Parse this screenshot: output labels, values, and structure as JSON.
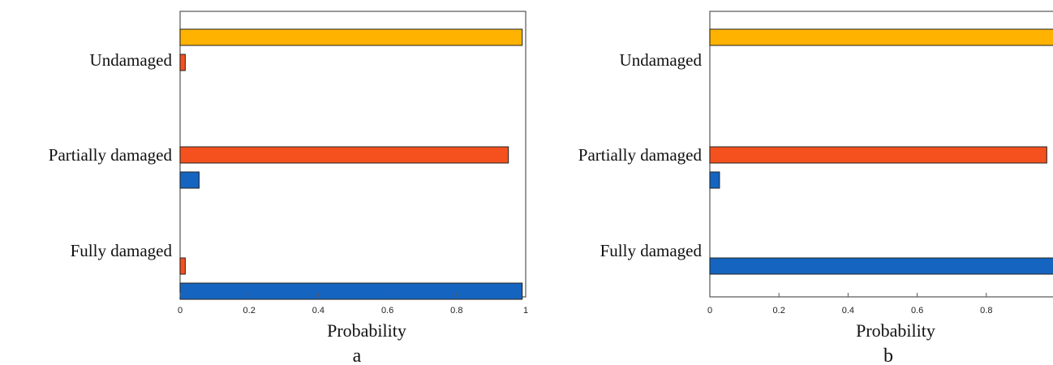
{
  "colors": {
    "undamaged": "#FFB300",
    "partial": "#F4511E",
    "full": "#1565C0",
    "frame": "#555555"
  },
  "chart_data": [
    {
      "panel": "a",
      "type": "bar",
      "orientation": "horizontal",
      "xlabel": "Probability",
      "xlim": [
        0,
        1
      ],
      "xticks": [
        "0",
        "0.2",
        "0.4",
        "0.6",
        "0.8",
        "1"
      ],
      "categories": [
        "Undamaged",
        "Partially damaged",
        "Fully damaged"
      ],
      "series": [
        {
          "values": [
            0.99,
            0,
            0
          ]
        },
        {
          "values": [
            0.015,
            0.95,
            0.015
          ]
        },
        {
          "values": [
            0,
            0.055,
            0.99
          ]
        }
      ]
    },
    {
      "panel": "b",
      "type": "bar",
      "orientation": "horizontal",
      "xlabel": "Probability",
      "xlim": [
        0,
        1
      ],
      "xticks": [
        "0",
        "0.2",
        "0.4",
        "0.6",
        "0.8"
      ],
      "categories": [
        "Undamaged",
        "Partially damaged",
        "Fully damaged"
      ],
      "series": [
        {
          "values": [
            1.0,
            0,
            0
          ]
        },
        {
          "values": [
            0,
            0.975,
            0
          ]
        },
        {
          "values": [
            0,
            0.028,
            1.0
          ]
        }
      ]
    }
  ]
}
